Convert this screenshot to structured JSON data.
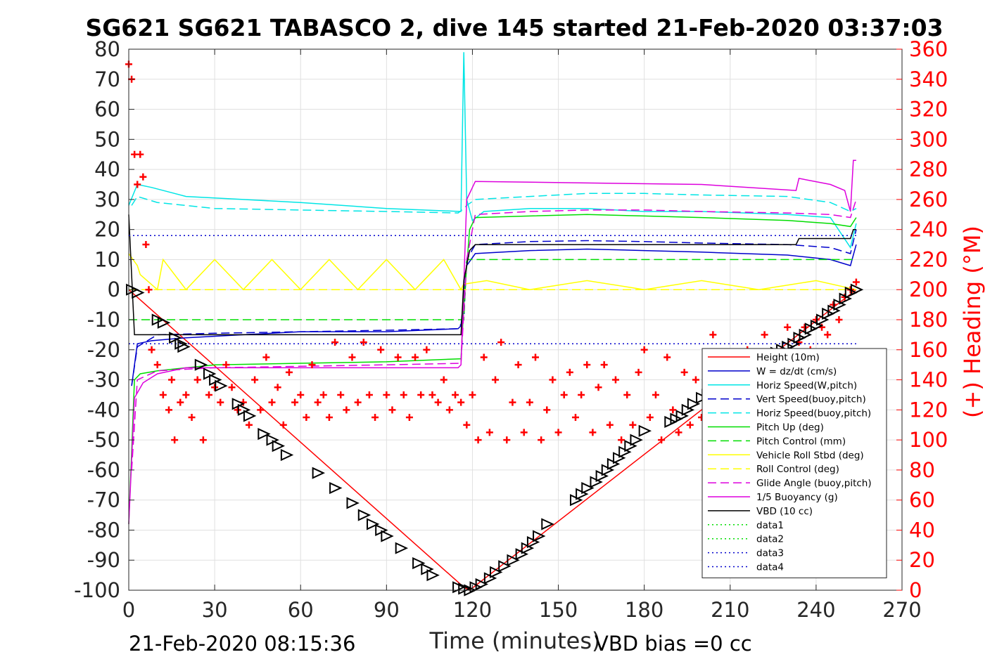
{
  "chart_data": {
    "type": "line",
    "title": "SG621 SG621 TABASCO 2, dive 145 started 21-Feb-2020 03:37:03",
    "xlabel": "Time (minutes)",
    "ylabel": "",
    "y2label": "(+) Heading (°M)",
    "xlim": [
      0,
      270
    ],
    "ylim": [
      -100,
      80
    ],
    "y2lim": [
      0,
      360
    ],
    "xticks": [
      "0",
      "30",
      "60",
      "90",
      "120",
      "150",
      "180",
      "210",
      "240",
      "270"
    ],
    "yticks": [
      "80",
      "70",
      "60",
      "50",
      "40",
      "30",
      "20",
      "10",
      "0",
      "-10",
      "-20",
      "-30",
      "-40",
      "-50",
      "-60",
      "-70",
      "-80",
      "-90",
      "-100"
    ],
    "y2ticks": [
      "360",
      "340",
      "320",
      "300",
      "280",
      "260",
      "240",
      "220",
      "200",
      "180",
      "160",
      "140",
      "120",
      "100",
      "80",
      "60",
      "40",
      "20",
      "0"
    ],
    "grid": true,
    "legend_position": "lower-right",
    "footer_left": "21-Feb-2020 08:15:36",
    "footer_right": "VBD bias =0 cc",
    "series": [
      {
        "name": "Height (10m)",
        "color": "#ff0000",
        "style": "solid",
        "x": [
          0,
          117,
          119,
          254
        ],
        "y": [
          0,
          -99,
          -100,
          0
        ]
      },
      {
        "name": "W = dz/dt (cm/s)",
        "color": "#0000cc",
        "style": "solid",
        "x": [
          1,
          3,
          8,
          20,
          40,
          60,
          90,
          115,
          116,
          118,
          121,
          140,
          160,
          180,
          200,
          230,
          245,
          252,
          254
        ],
        "y": [
          -32,
          -18,
          -17,
          -16,
          -15,
          -14,
          -14,
          -13,
          -12,
          8,
          12,
          13,
          13.5,
          13,
          12.5,
          11.5,
          10,
          8,
          15
        ]
      },
      {
        "name": "Horiz Speed(W,pitch)",
        "color": "#00e5e5",
        "style": "solid",
        "x": [
          0,
          3,
          8,
          20,
          40,
          60,
          90,
          116,
          117,
          118,
          120,
          124,
          140,
          160,
          180,
          200,
          230,
          245,
          252,
          254
        ],
        "y": [
          28,
          35,
          34,
          31,
          30,
          29,
          27,
          26,
          79,
          30,
          23,
          26,
          27,
          27,
          26,
          26,
          25,
          24,
          14,
          22
        ]
      },
      {
        "name": "Vert Speed(buoy,pitch)",
        "color": "#0000cc",
        "style": "dashed",
        "x": [
          1,
          3,
          10,
          30,
          60,
          90,
          115,
          117,
          118,
          121,
          140,
          160,
          180,
          200,
          230,
          245,
          252,
          254
        ],
        "y": [
          -32,
          -19,
          -15,
          -14.5,
          -14,
          -13.5,
          -13,
          -10,
          10,
          15,
          16,
          16.3,
          16,
          15.5,
          15,
          14,
          12,
          20
        ]
      },
      {
        "name": "Horiz Speed(buoy,pitch)",
        "color": "#00e5e5",
        "style": "dashed",
        "x": [
          1,
          3,
          10,
          30,
          60,
          90,
          115,
          117,
          118,
          121,
          140,
          160,
          180,
          200,
          230,
          245,
          252,
          254
        ],
        "y": [
          28,
          31,
          29,
          27,
          26.5,
          26,
          25.5,
          27,
          28,
          30,
          31,
          32,
          32,
          31.5,
          31,
          29,
          26,
          27
        ]
      },
      {
        "name": "Pitch Up (deg)",
        "color": "#00dd00",
        "style": "solid",
        "x": [
          0,
          2,
          4,
          10,
          30,
          60,
          90,
          116,
          117,
          119,
          121,
          140,
          160,
          180,
          200,
          230,
          245,
          252,
          254
        ],
        "y": [
          -78,
          -30,
          -28,
          -27,
          -25,
          -24.5,
          -24,
          -23,
          -5,
          20,
          24,
          24.5,
          25,
          24.5,
          24,
          23,
          22,
          21,
          24
        ]
      },
      {
        "name": "Pitch Control (mm)",
        "color": "#00dd00",
        "style": "dashed",
        "x": [
          0,
          3,
          117,
          118,
          254
        ],
        "y": [
          -10,
          -10,
          -10,
          10,
          10
        ]
      },
      {
        "name": "Vehicle Roll Stbd (deg)",
        "color": "#ffff00",
        "style": "solid",
        "x": [
          0,
          3,
          4,
          10,
          12,
          20,
          30,
          40,
          50,
          60,
          70,
          80,
          90,
          100,
          110,
          116,
          117,
          118,
          125,
          140,
          160,
          180,
          200,
          220,
          240,
          254
        ],
        "y": [
          12,
          8,
          5,
          0,
          10,
          0,
          10,
          0,
          10,
          0,
          10,
          0,
          10,
          0,
          10,
          0,
          2,
          2,
          3,
          0,
          3,
          0,
          3,
          0,
          3,
          0
        ]
      },
      {
        "name": "Roll Control (deg)",
        "color": "#ffff00",
        "style": "dashed",
        "x": [
          0,
          254
        ],
        "y": [
          0,
          0
        ]
      },
      {
        "name": "Glide Angle (buoy,pitch)",
        "color": "#dd00dd",
        "style": "dashed",
        "x": [
          1,
          3,
          10,
          30,
          60,
          90,
          116,
          118,
          121,
          140,
          160,
          180,
          200,
          230,
          245,
          252,
          254
        ],
        "y": [
          -60,
          -30,
          -27,
          -26,
          -25.5,
          -25,
          -24.5,
          10,
          25,
          26,
          26.5,
          26.5,
          26,
          25.5,
          25,
          24,
          30
        ]
      },
      {
        "name": "1/5 Buoyancy (g)",
        "color": "#dd00dd",
        "style": "solid",
        "x": [
          0,
          2,
          5,
          10,
          20,
          115,
          116,
          118,
          121,
          160,
          200,
          233,
          234,
          245,
          250,
          252,
          253,
          254
        ],
        "y": [
          -78,
          -36,
          -31,
          -28,
          -26,
          -26,
          -25,
          30,
          36,
          35.5,
          35,
          33,
          37,
          35,
          33,
          26,
          43,
          43
        ]
      },
      {
        "name": "VBD (10 cc)",
        "color": "#000000",
        "style": "solid",
        "x": [
          0,
          2,
          3,
          115,
          116,
          117,
          119,
          121,
          233,
          234,
          252,
          253,
          254
        ],
        "y": [
          25,
          -15,
          -15,
          -15,
          -15,
          3,
          13,
          15,
          15,
          17,
          17,
          20,
          20
        ]
      },
      {
        "name": "data1",
        "color": "#00dd00",
        "style": "dotted",
        "x": [],
        "y": []
      },
      {
        "name": "data2",
        "color": "#00dd00",
        "style": "dotted",
        "x": [],
        "y": []
      },
      {
        "name": "data3",
        "color": "#0000cc",
        "style": "dotted",
        "x": [
          0,
          254
        ],
        "y": [
          18,
          18
        ]
      },
      {
        "name": "data4",
        "color": "#0000cc",
        "style": "dotted",
        "x": [
          0,
          254
        ],
        "y": [
          -18,
          -18
        ]
      }
    ],
    "markers": {
      "depth_triangles": {
        "color": "#000000",
        "shape": "triangle",
        "x": [
          1,
          3,
          10,
          12,
          16,
          18,
          19,
          25,
          28,
          30,
          32,
          38,
          40,
          42,
          47,
          50,
          52,
          55,
          66,
          72,
          78,
          82,
          85,
          88,
          90,
          95,
          101,
          104,
          106,
          115,
          117,
          119,
          121,
          123,
          126,
          128,
          131,
          134,
          137,
          139,
          141,
          143,
          146,
          156,
          158,
          160,
          163,
          165,
          167,
          169,
          171,
          173,
          175,
          177,
          180,
          189,
          191,
          193,
          195,
          197,
          200,
          202,
          204,
          206,
          208,
          210,
          212,
          214,
          216,
          218,
          220,
          222,
          224,
          226,
          228,
          230,
          232,
          234,
          236,
          238,
          240,
          242,
          244,
          246,
          248,
          250,
          252,
          254
        ],
        "y": [
          0,
          -1,
          -10,
          -11,
          -16,
          -18,
          -19,
          -25,
          -28,
          -30,
          -32,
          -38,
          -40,
          -42,
          -48,
          -50,
          -52,
          -55,
          -61,
          -66,
          -71,
          -75,
          -78,
          -80,
          -82,
          -86,
          -91,
          -93,
          -95,
          -99,
          -99.5,
          -100,
          -99,
          -98,
          -96,
          -94,
          -92,
          -90,
          -88,
          -86,
          -84,
          -82,
          -78,
          -70,
          -68,
          -66,
          -64,
          -62,
          -60,
          -58,
          -56,
          -54,
          -52,
          -50,
          -47,
          -44,
          -43,
          -42,
          -40,
          -38,
          -36,
          -35,
          -34,
          -33,
          -32,
          -31,
          -30,
          -28,
          -27,
          -26,
          -25,
          -24,
          -22,
          -21,
          -20,
          -19,
          -18,
          -16,
          -15,
          -13,
          -12,
          -10,
          -8,
          -7,
          -5,
          -3,
          -1,
          0
        ]
      },
      "heading": {
        "color": "#ff0000",
        "shape": "plus",
        "axis": "right",
        "x": [
          0,
          1,
          2,
          3,
          4,
          5,
          6,
          7,
          8,
          10,
          12,
          14,
          15,
          16,
          18,
          20,
          22,
          24,
          26,
          28,
          30,
          32,
          34,
          36,
          38,
          40,
          42,
          44,
          46,
          48,
          50,
          52,
          54,
          56,
          58,
          60,
          62,
          64,
          66,
          68,
          70,
          72,
          74,
          76,
          78,
          80,
          82,
          84,
          86,
          88,
          90,
          92,
          94,
          96,
          98,
          100,
          102,
          104,
          106,
          108,
          110,
          112,
          114,
          116,
          118,
          120,
          122,
          124,
          126,
          128,
          130,
          132,
          134,
          136,
          138,
          140,
          142,
          144,
          146,
          148,
          150,
          152,
          154,
          156,
          158,
          160,
          162,
          164,
          166,
          168,
          170,
          172,
          174,
          176,
          178,
          180,
          182,
          184,
          186,
          188,
          190,
          192,
          194,
          196,
          198,
          200,
          202,
          204,
          206,
          208,
          210,
          212,
          214,
          216,
          218,
          220,
          222,
          224,
          226,
          228,
          230,
          232,
          234,
          236,
          238,
          240,
          242,
          244,
          246,
          248,
          250,
          252,
          254
        ],
        "y": [
          350,
          340,
          290,
          270,
          290,
          275,
          230,
          200,
          160,
          150,
          130,
          120,
          140,
          100,
          125,
          130,
          115,
          140,
          100,
          130,
          135,
          125,
          150,
          135,
          120,
          125,
          110,
          140,
          120,
          155,
          125,
          135,
          110,
          145,
          125,
          130,
          115,
          150,
          125,
          130,
          115,
          165,
          130,
          120,
          155,
          125,
          165,
          130,
          115,
          160,
          130,
          120,
          155,
          130,
          115,
          155,
          130,
          160,
          130,
          125,
          140,
          120,
          130,
          125,
          110,
          130,
          100,
          155,
          105,
          140,
          165,
          100,
          125,
          150,
          105,
          125,
          155,
          100,
          120,
          140,
          105,
          130,
          145,
          115,
          130,
          150,
          105,
          135,
          150,
          110,
          140,
          100,
          130,
          110,
          145,
          160,
          115,
          130,
          100,
          155,
          120,
          105,
          145,
          110,
          140,
          115,
          130,
          170,
          150,
          120,
          140,
          155,
          130,
          160,
          145,
          130,
          170,
          150,
          140,
          160,
          175,
          145,
          165,
          175,
          160,
          180,
          175,
          170,
          190,
          180,
          195,
          200,
          205
        ]
      }
    }
  }
}
